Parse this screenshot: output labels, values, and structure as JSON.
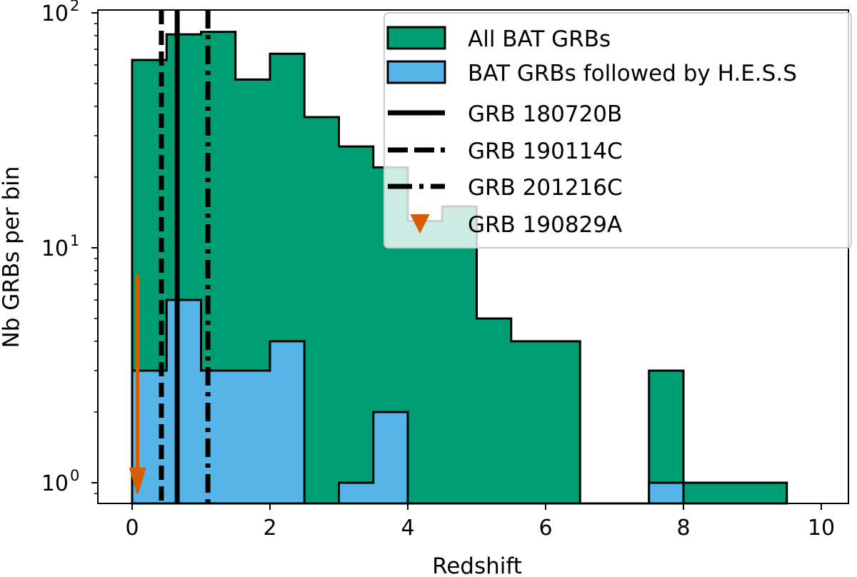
{
  "chart_data": {
    "type": "bar",
    "title": "",
    "xlabel": "Redshift",
    "ylabel": "Nb GRBs per bin",
    "xlim": [
      -0.5,
      10.4
    ],
    "ylim": [
      0.82,
      103
    ],
    "yscale": "log",
    "grid": false,
    "legend_placement": "top-right",
    "x_ticks": [
      "0",
      "2",
      "4",
      "6",
      "8",
      "10"
    ],
    "x_tick_values": [
      0,
      2,
      4,
      6,
      8,
      10
    ],
    "y_ticks": [
      {
        "base": "10",
        "exp": "0",
        "value": 1
      },
      {
        "base": "10",
        "exp": "1",
        "value": 10
      },
      {
        "base": "10",
        "exp": "2",
        "value": 100
      }
    ],
    "bin_edges": [
      0,
      0.5,
      1,
      1.5,
      2,
      2.5,
      3,
      3.5,
      4,
      4.5,
      5,
      5.5,
      6,
      6.5,
      7,
      7.5,
      8,
      8.5,
      9,
      9.5
    ],
    "series": [
      {
        "name": "All BAT GRBs",
        "kind": "histogram",
        "color": "#009E73",
        "values": [
          63,
          81,
          83,
          52,
          67,
          36,
          27,
          22,
          13,
          15,
          5,
          4,
          4,
          0,
          0,
          3,
          1,
          1,
          1
        ]
      },
      {
        "name": "BAT GRBs followed by H.E.S.S",
        "kind": "histogram",
        "color": "#56B4E9",
        "values": [
          3,
          6,
          3,
          3,
          4,
          0,
          1,
          2,
          0,
          0,
          0,
          0,
          0,
          0,
          0,
          1,
          0,
          0,
          0
        ]
      }
    ],
    "vlines": [
      {
        "name": "GRB 180720B",
        "x": 0.654,
        "style": "solid",
        "color": "#000000"
      },
      {
        "name": "GRB 190114C",
        "x": 0.4245,
        "style": "dashed",
        "color": "#000000"
      },
      {
        "name": "GRB 201216C",
        "x": 1.1,
        "style": "dashdot",
        "color": "#000000"
      }
    ],
    "upper_limit": {
      "name": "GRB 190829A",
      "x": 0.0785,
      "y_from": 7.6,
      "y_to": 1,
      "color": "#D55E00",
      "marker": "down-triangle"
    }
  }
}
